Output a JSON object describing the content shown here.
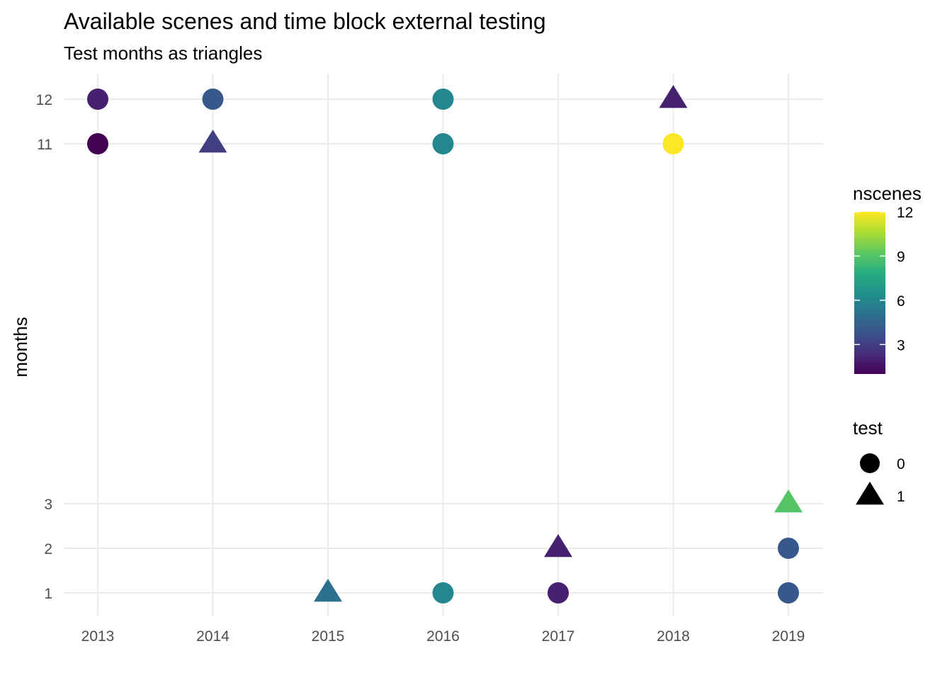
{
  "chart_data": {
    "type": "scatter",
    "title": "Available scenes and time block external testing",
    "subtitle": "Test months as triangles",
    "xlabel": "",
    "ylabel": "months",
    "x_ticks": [
      "2013",
      "2014",
      "2015",
      "2016",
      "2017",
      "2018",
      "2019"
    ],
    "y_ticks": [
      "1",
      "2",
      "3",
      "11",
      "12"
    ],
    "grid": true,
    "points": [
      {
        "year": "2013",
        "month": "12",
        "nscenes": 2,
        "test": 0
      },
      {
        "year": "2013",
        "month": "11",
        "nscenes": 1,
        "test": 0
      },
      {
        "year": "2014",
        "month": "12",
        "nscenes": 4,
        "test": 0
      },
      {
        "year": "2014",
        "month": "11",
        "nscenes": 3,
        "test": 1
      },
      {
        "year": "2015",
        "month": "1",
        "nscenes": 5,
        "test": 1
      },
      {
        "year": "2016",
        "month": "12",
        "nscenes": 6,
        "test": 0
      },
      {
        "year": "2016",
        "month": "11",
        "nscenes": 6,
        "test": 0
      },
      {
        "year": "2016",
        "month": "1",
        "nscenes": 6,
        "test": 0
      },
      {
        "year": "2017",
        "month": "2",
        "nscenes": 2,
        "test": 1
      },
      {
        "year": "2017",
        "month": "1",
        "nscenes": 2,
        "test": 0
      },
      {
        "year": "2018",
        "month": "12",
        "nscenes": 2,
        "test": 1
      },
      {
        "year": "2018",
        "month": "11",
        "nscenes": 12,
        "test": 0
      },
      {
        "year": "2019",
        "month": "3",
        "nscenes": 9,
        "test": 1
      },
      {
        "year": "2019",
        "month": "2",
        "nscenes": 4,
        "test": 0
      },
      {
        "year": "2019",
        "month": "1",
        "nscenes": 4,
        "test": 0
      }
    ],
    "color_legend": {
      "title": "nscenes",
      "range": [
        1,
        12
      ],
      "breaks": [
        "12",
        "9",
        "6",
        "3"
      ],
      "palette": "viridis"
    },
    "shape_legend": {
      "title": "test",
      "items": [
        {
          "label": "0",
          "shape": "circle"
        },
        {
          "label": "1",
          "shape": "triangle"
        }
      ]
    }
  }
}
